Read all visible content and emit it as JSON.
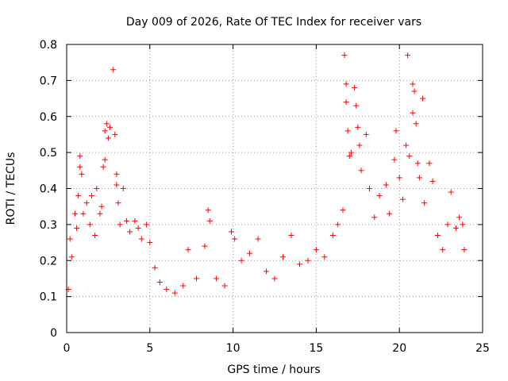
{
  "chart_data": {
    "type": "scatter",
    "title": "Day 009 of 2026, Rate Of TEC Index for receiver vars",
    "xlabel": "GPS time / hours",
    "ylabel": "ROTI / TECUs",
    "xlim": [
      0,
      25
    ],
    "ylim": [
      0,
      0.8
    ],
    "x_ticks": [
      0,
      5,
      10,
      15,
      20,
      25
    ],
    "y_ticks": [
      0,
      0.1,
      0.2,
      0.3,
      0.4,
      0.5,
      0.6,
      0.7,
      0.8
    ],
    "x_tick_labels": [
      "0",
      "5",
      "10",
      "15",
      "20",
      "25"
    ],
    "y_tick_labels": [
      "0",
      "0.1",
      "0.2",
      "0.3",
      "0.4",
      "0.5",
      "0.6",
      "0.7",
      "0.8"
    ],
    "grid": true,
    "marker": "+",
    "color": "#ff0000",
    "series": [
      {
        "name": "ROTI",
        "points": [
          [
            0.1,
            0.12
          ],
          [
            0.2,
            0.26
          ],
          [
            0.3,
            0.21
          ],
          [
            0.5,
            0.33
          ],
          [
            0.6,
            0.29
          ],
          [
            0.7,
            0.38
          ],
          [
            0.8,
            0.49
          ],
          [
            0.8,
            0.46
          ],
          [
            0.9,
            0.44
          ],
          [
            1.0,
            0.33
          ],
          [
            1.2,
            0.36
          ],
          [
            1.4,
            0.3
          ],
          [
            1.5,
            0.38
          ],
          [
            1.7,
            0.27
          ],
          [
            1.8,
            0.4
          ],
          [
            2.0,
            0.33
          ],
          [
            2.1,
            0.35
          ],
          [
            2.2,
            0.46
          ],
          [
            2.3,
            0.48
          ],
          [
            2.3,
            0.56
          ],
          [
            2.4,
            0.58
          ],
          [
            2.5,
            0.54
          ],
          [
            2.6,
            0.57
          ],
          [
            2.8,
            0.73
          ],
          [
            2.9,
            0.55
          ],
          [
            3.0,
            0.44
          ],
          [
            3.0,
            0.41
          ],
          [
            3.1,
            0.36
          ],
          [
            3.2,
            0.3
          ],
          [
            3.4,
            0.4
          ],
          [
            3.6,
            0.31
          ],
          [
            3.8,
            0.28
          ],
          [
            4.1,
            0.31
          ],
          [
            4.3,
            0.29
          ],
          [
            4.5,
            0.26
          ],
          [
            4.8,
            0.3
          ],
          [
            5.0,
            0.25
          ],
          [
            5.3,
            0.18
          ],
          [
            5.6,
            0.14
          ],
          [
            6.0,
            0.12
          ],
          [
            6.5,
            0.11
          ],
          [
            7.0,
            0.13
          ],
          [
            7.3,
            0.23
          ],
          [
            7.8,
            0.15
          ],
          [
            8.3,
            0.24
          ],
          [
            8.5,
            0.34
          ],
          [
            8.6,
            0.31
          ],
          [
            9.0,
            0.15
          ],
          [
            9.5,
            0.13
          ],
          [
            9.9,
            0.28
          ],
          [
            10.1,
            0.26
          ],
          [
            10.5,
            0.2
          ],
          [
            11.0,
            0.22
          ],
          [
            11.5,
            0.26
          ],
          [
            12.0,
            0.17
          ],
          [
            12.5,
            0.15
          ],
          [
            13.0,
            0.21
          ],
          [
            13.5,
            0.27
          ],
          [
            14.0,
            0.19
          ],
          [
            14.5,
            0.2
          ],
          [
            15.0,
            0.23
          ],
          [
            15.5,
            0.21
          ],
          [
            16.0,
            0.27
          ],
          [
            16.3,
            0.3
          ],
          [
            16.6,
            0.34
          ],
          [
            16.7,
            0.77
          ],
          [
            16.8,
            0.69
          ],
          [
            16.8,
            0.64
          ],
          [
            16.9,
            0.56
          ],
          [
            17.0,
            0.49
          ],
          [
            17.1,
            0.5
          ],
          [
            17.3,
            0.68
          ],
          [
            17.4,
            0.63
          ],
          [
            17.5,
            0.57
          ],
          [
            17.6,
            0.52
          ],
          [
            17.7,
            0.45
          ],
          [
            18.0,
            0.55
          ],
          [
            18.2,
            0.4
          ],
          [
            18.5,
            0.32
          ],
          [
            18.8,
            0.38
          ],
          [
            19.2,
            0.41
          ],
          [
            19.4,
            0.33
          ],
          [
            19.7,
            0.48
          ],
          [
            19.8,
            0.56
          ],
          [
            20.0,
            0.43
          ],
          [
            20.2,
            0.37
          ],
          [
            20.4,
            0.52
          ],
          [
            20.5,
            0.77
          ],
          [
            20.6,
            0.49
          ],
          [
            20.8,
            0.69
          ],
          [
            20.8,
            0.61
          ],
          [
            20.9,
            0.67
          ],
          [
            21.0,
            0.58
          ],
          [
            21.1,
            0.47
          ],
          [
            21.2,
            0.43
          ],
          [
            21.4,
            0.65
          ],
          [
            21.5,
            0.36
          ],
          [
            21.8,
            0.47
          ],
          [
            22.0,
            0.42
          ],
          [
            22.3,
            0.27
          ],
          [
            22.6,
            0.23
          ],
          [
            22.9,
            0.3
          ],
          [
            23.1,
            0.39
          ],
          [
            23.4,
            0.29
          ],
          [
            23.6,
            0.32
          ],
          [
            23.8,
            0.3
          ],
          [
            23.9,
            0.23
          ]
        ]
      }
    ]
  }
}
